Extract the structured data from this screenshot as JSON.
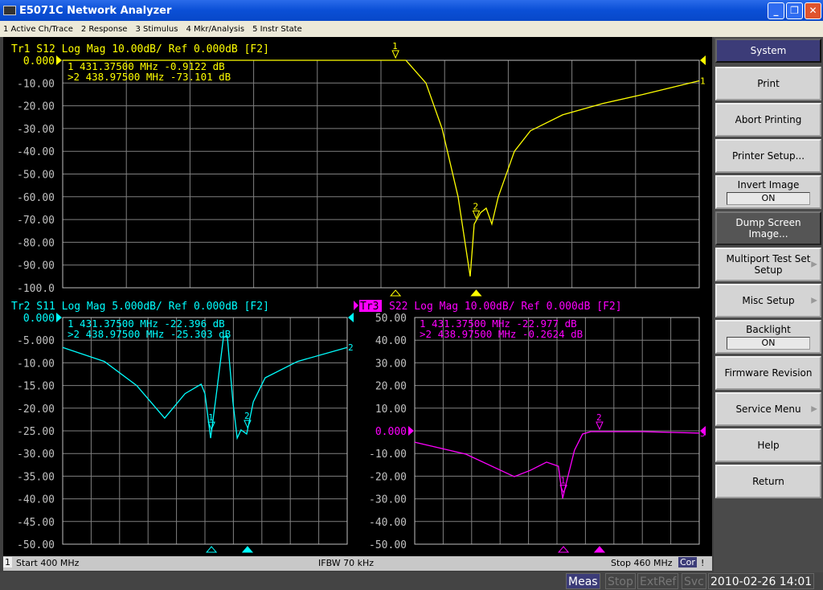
{
  "window": {
    "title": "E5071C Network Analyzer",
    "min": "_",
    "restore": "❐",
    "close": "✕"
  },
  "menu": [
    "1 Active Ch/Trace",
    "2 Response",
    "3 Stimulus",
    "4 Mkr/Analysis",
    "5 Instr State"
  ],
  "softkeys": {
    "title": "System",
    "items": [
      {
        "label": "Print"
      },
      {
        "label": "Abort Printing"
      },
      {
        "label": "Printer Setup..."
      },
      {
        "label": "Invert Image",
        "value": "ON"
      },
      {
        "label": "Dump Screen Image..."
      },
      {
        "label": "Multiport Test Set Setup"
      },
      {
        "label": "Misc Setup"
      },
      {
        "label": "Backlight",
        "value": "ON"
      },
      {
        "label": "Firmware Revision"
      },
      {
        "label": "Service Menu"
      },
      {
        "label": "Help"
      },
      {
        "label": "Return"
      }
    ]
  },
  "traces": [
    {
      "header": "Tr1 S12 Log Mag 10.00dB/ Ref 0.000dB [F2]",
      "color": "#ffff00",
      "ylabels": [
        "0.000",
        "-10.00",
        "-20.00",
        "-30.00",
        "-40.00",
        "-50.00",
        "-60.00",
        "-70.00",
        "-80.00",
        "-90.00",
        "-100.0"
      ],
      "yrange": [
        -100,
        0
      ],
      "markers": [
        " 1  431.37500 MHz -0.9122  dB",
        ">2  438.97500 MHz -73.101  dB"
      ],
      "freq_mhz": [
        400,
        432.35,
        434.24,
        435.76,
        437.27,
        438.41,
        438.79,
        439.39,
        439.92,
        440.45,
        441.06,
        442.58,
        444.09,
        447.12,
        450.91,
        454.7,
        460
      ],
      "db": [
        0,
        0,
        -10,
        -30,
        -60,
        -95,
        -72,
        -67,
        -65,
        -72,
        -60,
        -40,
        -31,
        -24,
        -19,
        -15,
        -9
      ]
    },
    {
      "header": "Tr2 S11 Log Mag 5.000dB/ Ref 0.000dB [F2]",
      "color": "#00ffff",
      "ylabels": [
        "0.000",
        "-5.000",
        "-10.00",
        "-15.00",
        "-20.00",
        "-25.00",
        "-30.00",
        "-35.00",
        "-40.00",
        "-45.00",
        "-50.00"
      ],
      "yrange": [
        -50,
        0
      ],
      "markers": [
        " 1  431.37500 MHz -22.396  dB",
        ">2  438.97500 MHz -25.303  dB"
      ],
      "freq_mhz": [
        400,
        408.8,
        415.6,
        421.5,
        425.8,
        429.2,
        430,
        431.2,
        432.2,
        433.9,
        434.7,
        435.9,
        436.8,
        437.6,
        438.8,
        440.2,
        442.7,
        449.5,
        460
      ],
      "db": [
        -6.6,
        -9.7,
        -15,
        -22.2,
        -16.8,
        -14.7,
        -16.8,
        -26.6,
        -18.6,
        -4.4,
        -4,
        -18.6,
        -26.6,
        -24.8,
        -25.7,
        -18.6,
        -13.3,
        -9.7,
        -6.6
      ]
    },
    {
      "header": "S22 Log Mag 10.00dB/ Ref 0.000dB [F2]",
      "trace_id": "Tr3",
      "color": "#ff00ff",
      "ylabels": [
        "50.00",
        "40.00",
        "30.00",
        "20.00",
        "10.00",
        "0.000",
        "-10.00",
        "-20.00",
        "-30.00",
        "-40.00",
        "-50.00"
      ],
      "yrange": [
        -50,
        50
      ],
      "markers": [
        " 1  431.37500 MHz -22.977  dB",
        ">2  438.97500 MHz -0.2624  dB"
      ],
      "freq_mhz": [
        400,
        410.8,
        421,
        424.4,
        427.8,
        430.3,
        431.2,
        432,
        433.7,
        435.4,
        437.1,
        448.1,
        460
      ],
      "db": [
        -5,
        -10.3,
        -20.2,
        -17.4,
        -13.8,
        -15.6,
        -29.8,
        -22.7,
        -8.5,
        -1.4,
        -0.35,
        -0.35,
        -1
      ]
    }
  ],
  "channel": {
    "num": "1",
    "start": "Start 400 MHz",
    "ifbw": "IFBW 70 kHz",
    "stop": "Stop 460 MHz",
    "cor": "Cor",
    "excl": "!"
  },
  "status": {
    "meas": "Meas",
    "stop": "Stop",
    "extref": "ExtRef",
    "svc": "Svc",
    "datetime": "2010-02-26 14:01"
  }
}
